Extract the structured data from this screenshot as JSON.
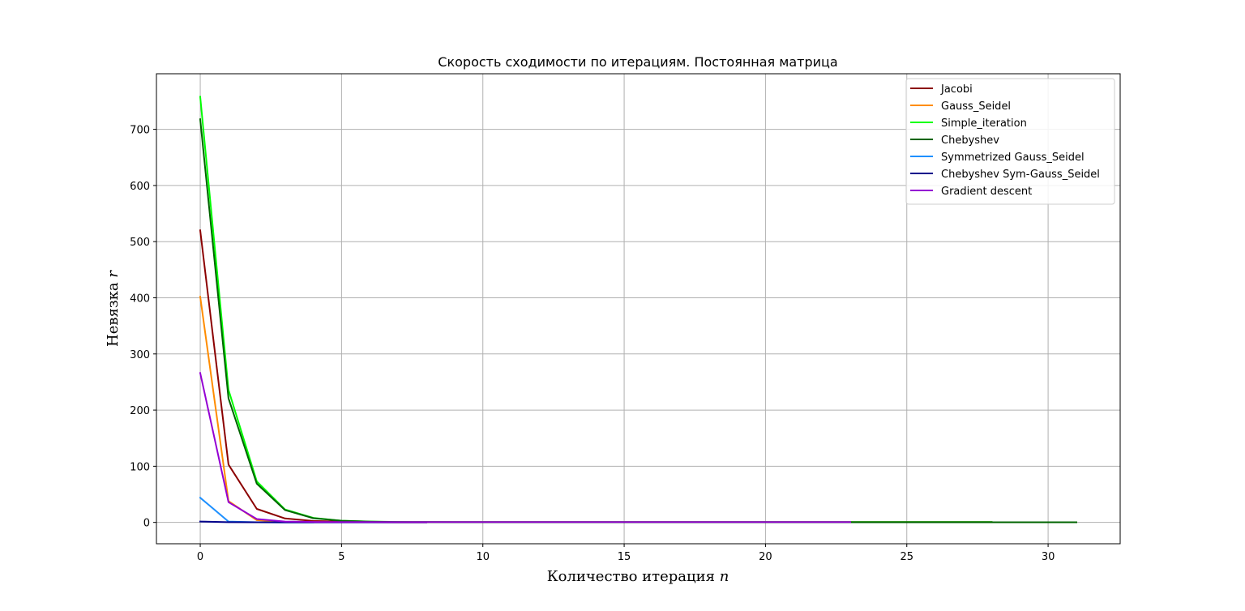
{
  "chart_data": {
    "type": "line",
    "title": "Скорость сходимости по итерациям. Постоянная матрица",
    "xlabel": "Количество итерация",
    "xlabel_var": "n",
    "ylabel": "Невязка",
    "ylabel_var": "r",
    "xlim": [
      -1.55,
      32.55
    ],
    "ylim": [
      -38,
      799
    ],
    "xticks": [
      0,
      5,
      10,
      15,
      20,
      25,
      30
    ],
    "yticks": [
      0,
      100,
      200,
      300,
      400,
      500,
      600,
      700
    ],
    "grid": true,
    "legend_position": "top-right",
    "series": [
      {
        "name": "Jacobi",
        "color": "#8b0000",
        "x": [
          0,
          1,
          2,
          3,
          4,
          5,
          6,
          7,
          8,
          9,
          10,
          11,
          12,
          13,
          14,
          15,
          16,
          17,
          18,
          19,
          20,
          21,
          22,
          23,
          24,
          25,
          26,
          27,
          28
        ],
        "y": [
          520,
          103,
          24,
          7,
          2.5,
          1.2,
          0.8,
          0.6,
          0.5,
          0.5,
          0.5,
          0.5,
          0.5,
          0.5,
          0.5,
          0.5,
          0.5,
          0.5,
          0.5,
          0.5,
          0.5,
          0.5,
          0.5,
          0.5,
          0.5,
          0.5,
          0.5,
          0.5,
          0.5
        ]
      },
      {
        "name": "Gauss_Seidel",
        "color": "#ff8c00",
        "x": [
          0,
          1,
          2,
          3,
          4,
          5,
          6,
          7,
          8
        ],
        "y": [
          402,
          38,
          4,
          1,
          0.5,
          0.3,
          0.2,
          0.1,
          0.1
        ]
      },
      {
        "name": "Simple_iteration",
        "color": "#00ff00",
        "x": [
          0,
          1,
          2,
          3,
          4,
          5,
          6,
          7,
          8,
          9,
          10,
          11,
          12,
          13,
          14,
          15,
          16,
          17,
          18,
          19,
          20,
          21,
          22,
          23,
          24,
          25,
          26,
          27,
          28
        ],
        "y": [
          758,
          236,
          73,
          23,
          8,
          3,
          1.5,
          0.8,
          0.5,
          0.5,
          0.5,
          0.5,
          0.5,
          0.5,
          0.5,
          0.5,
          0.5,
          0.5,
          0.5,
          0.5,
          0.5,
          0.5,
          0.5,
          0.5,
          0.5,
          0.5,
          0.5,
          0.5,
          0.5
        ]
      },
      {
        "name": "Chebyshev",
        "color": "#006400",
        "x": [
          0,
          1,
          2,
          3,
          4,
          5,
          6,
          7,
          8,
          9,
          10,
          11,
          12,
          13,
          14,
          15,
          16,
          17,
          18,
          19,
          20,
          21,
          22,
          23,
          24,
          25,
          26,
          27,
          28,
          29,
          30,
          31
        ],
        "y": [
          718,
          221,
          69,
          22,
          7.5,
          3,
          1.2,
          0.6,
          0.4,
          0.3,
          0.3,
          0.3,
          0.3,
          0.3,
          0.3,
          0.3,
          0.3,
          0.3,
          0.3,
          0.3,
          0.3,
          0.3,
          0.3,
          0.3,
          0.3,
          0.3,
          0.3,
          0.3,
          0.3,
          0.3,
          0.3,
          0.3
        ]
      },
      {
        "name": "Symmetrized Gauss_Seidel",
        "color": "#1e90ff",
        "x": [
          0,
          1,
          2,
          3,
          4
        ],
        "y": [
          44,
          1.5,
          0.3,
          0.1,
          0.1
        ]
      },
      {
        "name": "Chebyshev Sym-Gauss_Seidel",
        "color": "#00008b",
        "x": [
          0,
          1,
          2,
          3,
          4,
          5,
          6,
          7,
          8
        ],
        "y": [
          1.5,
          0.4,
          0.2,
          0.1,
          0.1,
          0.1,
          0.1,
          0.1,
          0.1
        ]
      },
      {
        "name": "Gradient descent",
        "color": "#9400d3",
        "x": [
          0,
          1,
          2,
          3,
          4,
          5,
          6,
          7,
          8,
          9,
          10,
          11,
          12,
          13,
          14,
          15,
          16,
          17,
          18,
          19,
          20,
          21,
          22,
          23
        ],
        "y": [
          266,
          36,
          6,
          1.5,
          0.8,
          0.6,
          0.5,
          0.5,
          0.5,
          0.5,
          0.5,
          0.5,
          0.5,
          0.5,
          0.5,
          0.5,
          0.5,
          0.5,
          0.5,
          0.5,
          0.5,
          0.5,
          0.5,
          0.5
        ]
      }
    ]
  }
}
